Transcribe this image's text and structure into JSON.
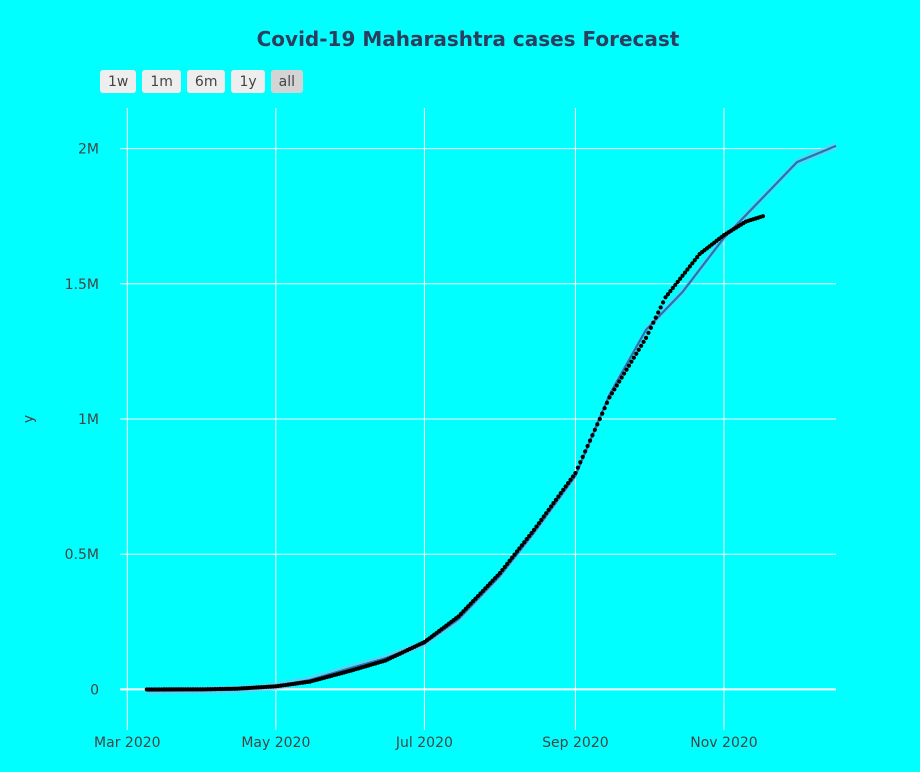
{
  "chart_data": {
    "type": "line",
    "title": "Covid-19 Maharashtra cases Forecast",
    "ylabel": "y",
    "xlabel": "",
    "range_buttons": [
      "1w",
      "1m",
      "6m",
      "1y",
      "all"
    ],
    "active_range": "all",
    "x_range": [
      "2020-02-27",
      "2020-12-17"
    ],
    "y_range": [
      -150000,
      2150000
    ],
    "x_ticks": [
      {
        "date": "2020-03-01",
        "label": "Mar 2020"
      },
      {
        "date": "2020-05-01",
        "label": "May 2020"
      },
      {
        "date": "2020-07-01",
        "label": "Jul 2020"
      },
      {
        "date": "2020-09-01",
        "label": "Sep 2020"
      },
      {
        "date": "2020-11-01",
        "label": "Nov 2020"
      }
    ],
    "y_ticks": [
      {
        "value": 0,
        "label": "0"
      },
      {
        "value": 500000,
        "label": "0.5M"
      },
      {
        "value": 1000000,
        "label": "1M"
      },
      {
        "value": 1500000,
        "label": "1.5M"
      },
      {
        "value": 2000000,
        "label": "2M"
      }
    ],
    "grid": true,
    "colors": {
      "background": "#00ffff",
      "forecast_line": "#1f77b4",
      "confidence_band": "#6fc6f0",
      "actual_points": "#000000"
    },
    "series": [
      {
        "kind": "forecast",
        "points": [
          [
            "2020-03-09",
            -5000
          ],
          [
            "2020-04-01",
            -3000
          ],
          [
            "2020-04-15",
            0
          ],
          [
            "2020-05-01",
            12000
          ],
          [
            "2020-05-15",
            35000
          ],
          [
            "2020-06-01",
            80000
          ],
          [
            "2020-06-15",
            115000
          ],
          [
            "2020-07-01",
            170000
          ],
          [
            "2020-07-15",
            260000
          ],
          [
            "2020-08-01",
            420000
          ],
          [
            "2020-08-15",
            580000
          ],
          [
            "2020-09-01",
            790000
          ],
          [
            "2020-09-15",
            1090000
          ],
          [
            "2020-09-30",
            1330000
          ],
          [
            "2020-10-15",
            1470000
          ],
          [
            "2020-11-01",
            1670000
          ],
          [
            "2020-12-01",
            1950000
          ],
          [
            "2020-12-17",
            2010000
          ]
        ]
      },
      {
        "kind": "actual",
        "points": [
          [
            "2020-03-09",
            2
          ],
          [
            "2020-04-01",
            300
          ],
          [
            "2020-04-15",
            2700
          ],
          [
            "2020-05-01",
            11500
          ],
          [
            "2020-05-15",
            29000
          ],
          [
            "2020-06-01",
            70000
          ],
          [
            "2020-06-15",
            107000
          ],
          [
            "2020-07-01",
            175000
          ],
          [
            "2020-07-15",
            270000
          ],
          [
            "2020-08-01",
            430000
          ],
          [
            "2020-08-15",
            590000
          ],
          [
            "2020-09-01",
            800000
          ],
          [
            "2020-09-15",
            1080000
          ],
          [
            "2020-09-30",
            1300000
          ],
          [
            "2020-10-08",
            1450000
          ],
          [
            "2020-10-15",
            1530000
          ],
          [
            "2020-10-22",
            1610000
          ],
          [
            "2020-11-01",
            1680000
          ],
          [
            "2020-11-10",
            1730000
          ],
          [
            "2020-11-17",
            1750000
          ]
        ]
      }
    ]
  }
}
